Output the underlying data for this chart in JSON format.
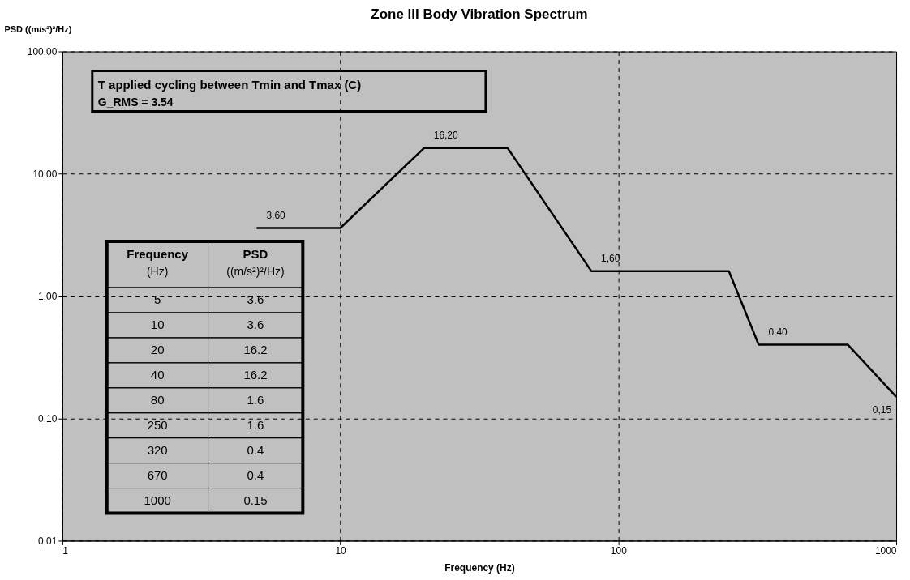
{
  "chart_data": {
    "type": "line",
    "title": "Zone III Body Vibration Spectrum",
    "xlabel": "Frequency (Hz)",
    "ylabel": "PSD ((m/s²)²/Hz)",
    "x": [
      5,
      10,
      20,
      40,
      80,
      250,
      320,
      670,
      1000
    ],
    "series": [
      {
        "color": "#000000",
        "values": [
          3.6,
          3.6,
          16.2,
          16.2,
          1.6,
          1.6,
          0.4,
          0.4,
          0.15
        ],
        "value_labels": [
          "3,60",
          null,
          "16,20",
          null,
          "1,60",
          null,
          "0,40",
          null,
          "0,15"
        ]
      }
    ],
    "log": "xy",
    "xlim": [
      1,
      1000
    ],
    "ylim": [
      0.01,
      100
    ],
    "xticks": [
      1,
      10,
      100,
      1000
    ],
    "yticks": [
      {
        "value": 0.01,
        "label": "0,01"
      },
      {
        "value": 0.1,
        "label": "0,10"
      },
      {
        "value": 1,
        "label": "1,00"
      },
      {
        "value": 10,
        "label": "10,00"
      },
      {
        "value": 100,
        "label": "100,00"
      }
    ],
    "grid": true,
    "marker": "none",
    "line_style": "solid",
    "annotations": [
      "T applied cycling between Tmin and Tmax (C)",
      "G_RMS = 3.54",
      "Frequency (Hz)",
      "PSD ((m/s²)²/Hz)",
      "5",
      "3.6",
      "10",
      "3.6",
      "20",
      "16.2",
      "40",
      "16.2",
      "80",
      "1.6",
      "250",
      "1.6",
      "320",
      "0.4",
      "670",
      "0.4",
      "1000",
      "0.15"
    ]
  }
}
